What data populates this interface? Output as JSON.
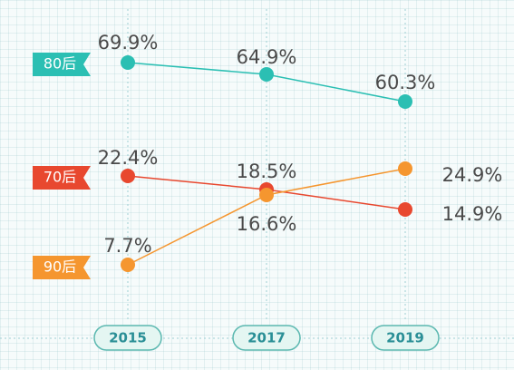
{
  "chart_data": {
    "type": "line",
    "x": [
      "2015",
      "2017",
      "2019"
    ],
    "series": [
      {
        "name": "80后",
        "values": [
          69.9,
          64.9,
          60.3
        ],
        "labels": [
          "69.9%",
          "64.9%",
          "60.3%"
        ],
        "color": "#2bbfb3"
      },
      {
        "name": "70后",
        "values": [
          22.4,
          18.5,
          14.9
        ],
        "labels": [
          "22.4%",
          "18.5%",
          "14.9%"
        ],
        "color": "#e8482f"
      },
      {
        "name": "90后",
        "values": [
          7.7,
          16.6,
          24.9
        ],
        "labels": [
          "7.7%",
          "16.6%",
          "24.9%"
        ],
        "color": "#f5962f"
      }
    ],
    "title": "",
    "xlabel": "",
    "ylabel": "",
    "grid": true,
    "legend": "left"
  }
}
